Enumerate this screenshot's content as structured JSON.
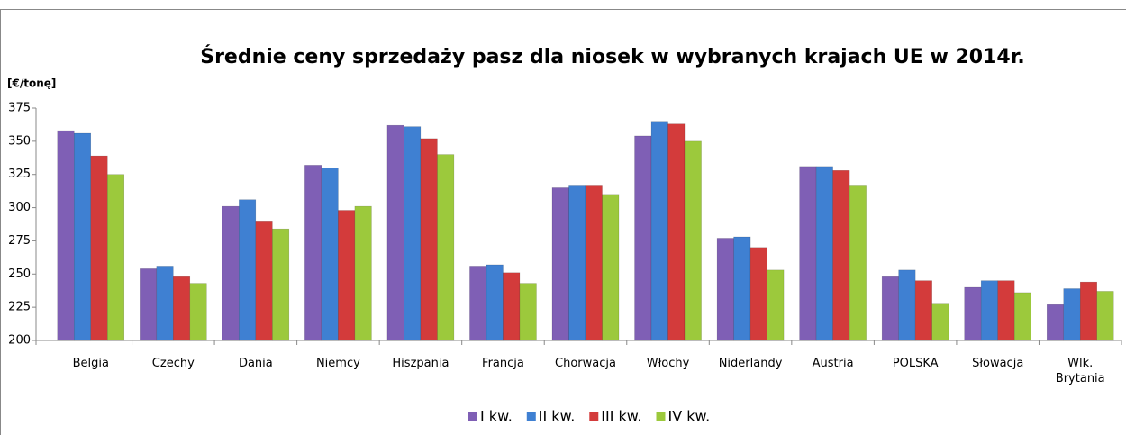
{
  "chart_data": {
    "type": "bar",
    "title": "Średnie ceny sprzedaży pasz dla niosek w wybranych krajach UE w 2014r.",
    "y_axis_label": "[€/tonę]",
    "categories": [
      "Belgia",
      "Czechy",
      "Dania",
      "Niemcy",
      "Hiszpania",
      "Francja",
      "Chorwacja",
      "Włochy",
      "Niderlandy",
      "Austria",
      "POLSKA",
      "Słowacja",
      "Wlk. Brytania"
    ],
    "series": [
      {
        "name": "I kw.",
        "color": "#7f5fb5",
        "values": [
          358,
          254,
          301,
          332,
          362,
          256,
          315,
          354,
          277,
          331,
          248,
          240,
          227
        ]
      },
      {
        "name": "II kw.",
        "color": "#3f80d2",
        "values": [
          356,
          256,
          306,
          330,
          361,
          257,
          317,
          365,
          278,
          331,
          253,
          245,
          239
        ]
      },
      {
        "name": "III kw.",
        "color": "#d33b3b",
        "values": [
          339,
          248,
          290,
          298,
          352,
          251,
          317,
          363,
          270,
          328,
          245,
          245,
          244
        ]
      },
      {
        "name": "IV kw.",
        "color": "#9cc93c",
        "values": [
          325,
          243,
          284,
          301,
          340,
          243,
          310,
          350,
          253,
          317,
          228,
          236,
          237
        ]
      }
    ],
    "ylim": [
      200,
      375
    ],
    "yticks": [
      200,
      225,
      250,
      275,
      300,
      325,
      350,
      375
    ],
    "grid": false,
    "legend": "bottom"
  }
}
